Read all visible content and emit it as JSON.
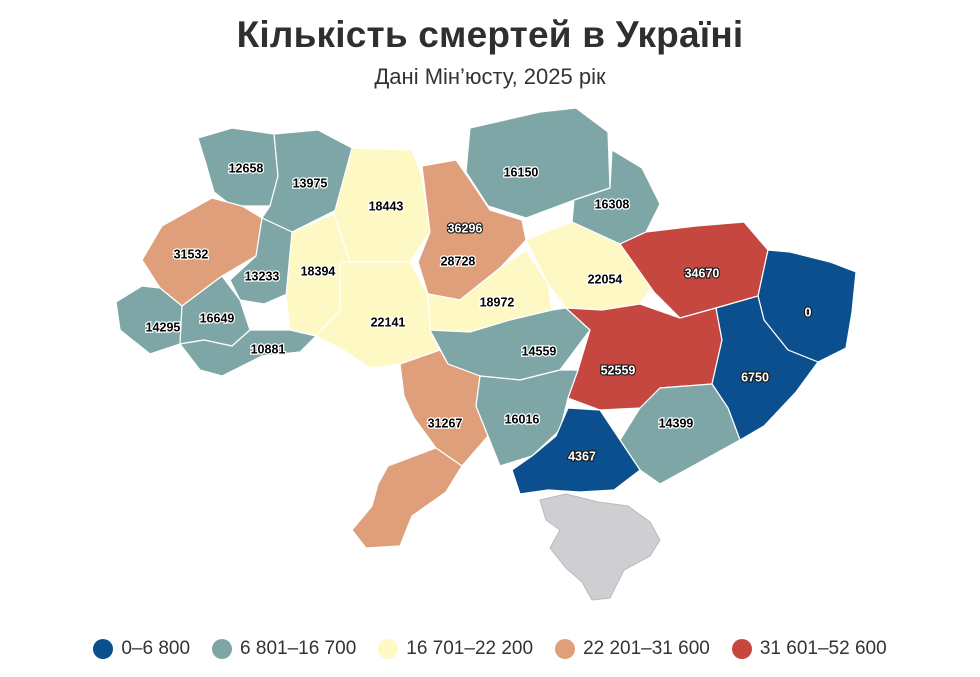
{
  "title": "Кількість смертей в Україні",
  "subtitle": "Дані Мін’юсту, 2025 рік",
  "colors": {
    "c1": "#0b4f8f",
    "c2": "#7fa6a6",
    "c3": "#fdf8c4",
    "c4": "#df9f7b",
    "c5": "#c5473f",
    "nodata": "#cfcfd1"
  },
  "legend": [
    {
      "label": "0–6 800",
      "color": "#0b4f8f"
    },
    {
      "label": "6 801–16 700",
      "color": "#7fa6a6"
    },
    {
      "label": "16 701–22 200",
      "color": "#fdf8c4"
    },
    {
      "label": "22 201–31 600",
      "color": "#df9f7b"
    },
    {
      "label": "31 601–52 600",
      "color": "#c5473f"
    }
  ],
  "map_data": {
    "type": "choropleth",
    "regions": [
      {
        "value": 12658,
        "bin": "c2"
      },
      {
        "value": 13975,
        "bin": "c2"
      },
      {
        "value": 18443,
        "bin": "c3"
      },
      {
        "value": 16150,
        "bin": "c2"
      },
      {
        "value": 16308,
        "bin": "c2"
      },
      {
        "value": 31532,
        "bin": "c4"
      },
      {
        "value": 36296,
        "bin": "c5"
      },
      {
        "value": 13233,
        "bin": "c2"
      },
      {
        "value": 18394,
        "bin": "c3"
      },
      {
        "value": 28728,
        "bin": "c4"
      },
      {
        "value": 22054,
        "bin": "c3"
      },
      {
        "value": 34670,
        "bin": "c5"
      },
      {
        "value": 0,
        "bin": "c1"
      },
      {
        "value": 18972,
        "bin": "c3"
      },
      {
        "value": 14295,
        "bin": "c2"
      },
      {
        "value": 16649,
        "bin": "c2"
      },
      {
        "value": 22141,
        "bin": "c3"
      },
      {
        "value": 10881,
        "bin": "c2"
      },
      {
        "value": 14559,
        "bin": "c2"
      },
      {
        "value": 52559,
        "bin": "c5"
      },
      {
        "value": 6750,
        "bin": "c1"
      },
      {
        "value": 31267,
        "bin": "c4"
      },
      {
        "value": 16016,
        "bin": "c2"
      },
      {
        "value": 14399,
        "bin": "c2"
      },
      {
        "value": 4367,
        "bin": "c1"
      },
      {
        "value": 31267,
        "bin": "c4",
        "note_region": "south-west"
      }
    ]
  }
}
